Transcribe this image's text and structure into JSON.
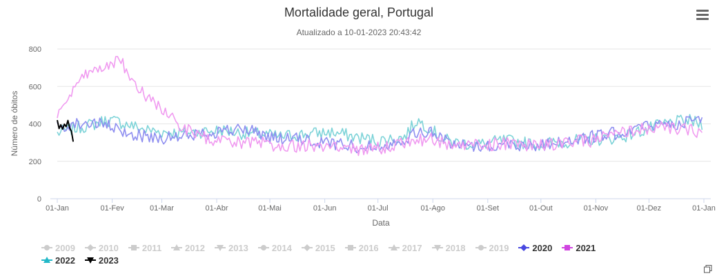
{
  "chart_data": {
    "type": "line",
    "title": "Mortalidade geral, Portugal",
    "subtitle": "Atualizado a 10-01-2023 20:43:42",
    "xlabel": "Data",
    "ylabel": "Número de óbitos",
    "ylim": [
      0,
      800
    ],
    "yticks": [
      "0",
      "200",
      "400",
      "600",
      "800"
    ],
    "xticks": [
      "01-Jan",
      "01-Fev",
      "01-Mar",
      "01-Abr",
      "01-Mai",
      "01-Jun",
      "01-Jul",
      "01-Ago",
      "01-Set",
      "01-Out",
      "01-Nov",
      "01-Dez",
      "01-Jan"
    ],
    "xtick_days": [
      1,
      32,
      60,
      91,
      121,
      152,
      182,
      213,
      244,
      274,
      305,
      335,
      366
    ],
    "grid": true,
    "legend_position": "bottom",
    "series_anchor_days": [
      1,
      8,
      15,
      22,
      29,
      36,
      43,
      50,
      57,
      64,
      71,
      78,
      85,
      92,
      99,
      106,
      113,
      120,
      127,
      134,
      141,
      148,
      155,
      162,
      169,
      176,
      183,
      190,
      197,
      204,
      211,
      218,
      225,
      232,
      239,
      246,
      253,
      260,
      267,
      274,
      281,
      288,
      295,
      302,
      309,
      316,
      323,
      330,
      337,
      344,
      351,
      358,
      365
    ],
    "series": [
      {
        "name": "2009",
        "visible": false,
        "marker": "circle",
        "color": "#cccccc",
        "values": []
      },
      {
        "name": "2010",
        "visible": false,
        "marker": "diamond",
        "color": "#cccccc",
        "values": []
      },
      {
        "name": "2011",
        "visible": false,
        "marker": "square",
        "color": "#cccccc",
        "values": []
      },
      {
        "name": "2012",
        "visible": false,
        "marker": "triangle",
        "color": "#cccccc",
        "values": []
      },
      {
        "name": "2013",
        "visible": false,
        "marker": "triangle-down",
        "color": "#cccccc",
        "values": []
      },
      {
        "name": "2014",
        "visible": false,
        "marker": "circle",
        "color": "#cccccc",
        "values": []
      },
      {
        "name": "2015",
        "visible": false,
        "marker": "diamond",
        "color": "#cccccc",
        "values": []
      },
      {
        "name": "2016",
        "visible": false,
        "marker": "square",
        "color": "#cccccc",
        "values": []
      },
      {
        "name": "2017",
        "visible": false,
        "marker": "triangle",
        "color": "#cccccc",
        "values": []
      },
      {
        "name": "2018",
        "visible": false,
        "marker": "triangle-down",
        "color": "#cccccc",
        "values": []
      },
      {
        "name": "2019",
        "visible": false,
        "marker": "circle",
        "color": "#cccccc",
        "values": []
      },
      {
        "name": "2020",
        "visible": true,
        "marker": "diamond",
        "color": "#8e8ef0",
        "legend_color": "#4848e0",
        "values": [
          380,
          395,
          405,
          400,
          390,
          360,
          345,
          335,
          330,
          325,
          330,
          340,
          350,
          360,
          365,
          370,
          360,
          330,
          320,
          320,
          310,
          300,
          300,
          290,
          280,
          280,
          280,
          300,
          320,
          350,
          360,
          320,
          290,
          290,
          285,
          280,
          290,
          290,
          285,
          285,
          300,
          305,
          310,
          330,
          340,
          350,
          370,
          380,
          390,
          400,
          405,
          410,
          420
        ]
      },
      {
        "name": "2021",
        "visible": true,
        "marker": "square",
        "color": "#f09af0",
        "legend_color": "#d045e0",
        "values": [
          450,
          540,
          640,
          690,
          720,
          740,
          650,
          560,
          500,
          460,
          380,
          350,
          320,
          310,
          300,
          295,
          300,
          290,
          285,
          280,
          285,
          280,
          275,
          270,
          265,
          260,
          270,
          290,
          300,
          310,
          320,
          300,
          285,
          285,
          290,
          290,
          295,
          290,
          285,
          285,
          290,
          300,
          305,
          310,
          330,
          340,
          360,
          370,
          380,
          375,
          370,
          365,
          360
        ]
      },
      {
        "name": "2022",
        "visible": true,
        "marker": "triangle",
        "color": "#7dd3d8",
        "legend_color": "#22b8c8",
        "values": [
          350,
          370,
          385,
          400,
          420,
          410,
          390,
          370,
          360,
          355,
          350,
          355,
          360,
          365,
          360,
          350,
          345,
          340,
          330,
          340,
          345,
          350,
          355,
          345,
          330,
          320,
          310,
          320,
          330,
          420,
          380,
          320,
          300,
          295,
          290,
          300,
          310,
          305,
          295,
          290,
          300,
          305,
          310,
          315,
          320,
          325,
          340,
          360,
          380,
          400,
          410,
          415,
          400
        ]
      },
      {
        "name": "2023",
        "visible": true,
        "marker": "triangle-down",
        "color": "#000000",
        "legend_color": "#000000",
        "days": [
          1,
          2,
          3,
          4,
          5,
          6,
          7,
          8,
          9,
          10
        ],
        "values": [
          420,
          375,
          395,
          372,
          398,
          385,
          418,
          378,
          360,
          305
        ]
      }
    ]
  },
  "icons": {
    "menu": "hamburger-menu-icon",
    "copy": "copy-icon"
  }
}
